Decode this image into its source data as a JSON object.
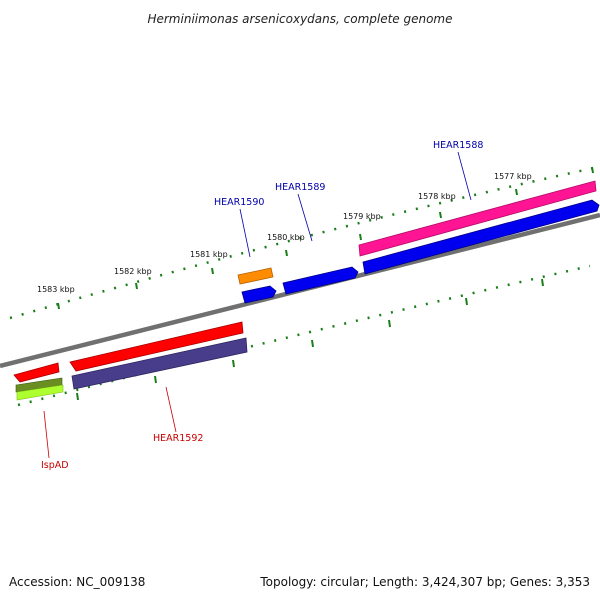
{
  "header": {
    "title": "Herminiimonas arsenicoxydans, complete genome"
  },
  "footer": {
    "accession": "Accession: NC_009138",
    "summary": "Topology: circular; Length: 3,424,307 bp; Genes: 3,353"
  },
  "ruler": {
    "tick_color": "#1a7f1a",
    "labels": [
      "1583 kbp",
      "1582 kbp",
      "1581 kbp",
      "1580 kbp",
      "1579 kbp",
      "1578 kbp",
      "1577 kbp"
    ]
  },
  "genes": {
    "upper_labels": [
      {
        "text": "HEAR1590",
        "color": "#0000aa"
      },
      {
        "text": "HEAR1589",
        "color": "#0000aa"
      },
      {
        "text": "HEAR1588",
        "color": "#0000aa"
      }
    ],
    "lower_labels": [
      {
        "text": "IspAD",
        "color": "#cc0000"
      },
      {
        "text": "HEAR1592",
        "color": "#cc0000"
      }
    ]
  },
  "colors": {
    "backbone": "#808080",
    "red": "#ff0000",
    "blue": "#0000ee",
    "orange": "#ff8c00",
    "pink": "#ff1493",
    "slate": "#483d8b",
    "olive": "#6b8e23",
    "lime": "#adff2f"
  }
}
